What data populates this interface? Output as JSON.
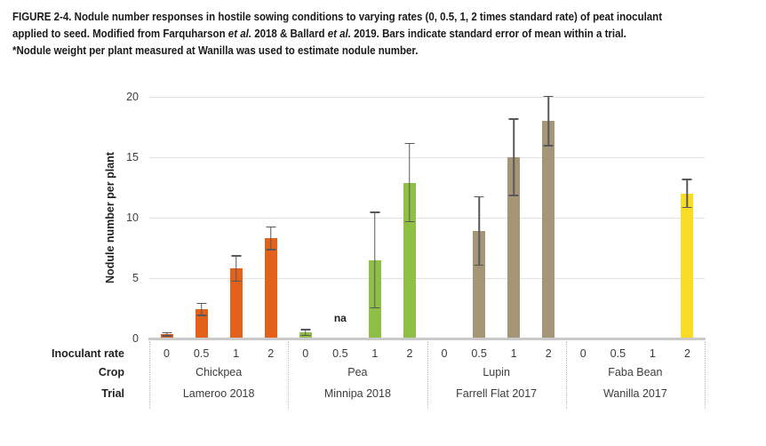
{
  "figure_caption": {
    "lines": [
      {
        "segments": [
          {
            "text": "FIGURE 2-4. Nodule number responses in hostile sowing conditions to varying rates (0, 0.5, 1, 2 times standard rate) of peat inoculant"
          }
        ]
      },
      {
        "segments": [
          {
            "text": "applied to seed. Modified from Farquharson "
          },
          {
            "text": "et al.",
            "italic": true
          },
          {
            "text": " 2018 & Ballard "
          },
          {
            "text": "et al.",
            "italic": true
          },
          {
            "text": " 2019. Bars indicate standard error of mean within a trial."
          }
        ]
      },
      {
        "segments": [
          {
            "text": "*Nodule weight per plant measured at Wanilla was used to estimate nodule number."
          }
        ]
      }
    ]
  },
  "chart_data": {
    "type": "bar",
    "ylabel": "Nodule number per plant",
    "xlabel": "",
    "ylim": [
      0,
      20
    ],
    "yticks": [
      0,
      5,
      10,
      15,
      20
    ],
    "grid": true,
    "legend": "none",
    "na_label": "na",
    "error_bar_color": "#58585a",
    "row_labels": {
      "rate": "Inoculant rate",
      "crop": "Crop",
      "trial": "Trial"
    },
    "rate_categories": [
      "0",
      "0.5",
      "1",
      "2"
    ],
    "groups": [
      {
        "crop": "Chickpea",
        "trial": "Lameroo 2018",
        "color": "#e2611b",
        "bars": [
          {
            "rate": "0",
            "value": 0.35,
            "error": 0.2
          },
          {
            "rate": "0.5",
            "value": 2.4,
            "error": 0.55
          },
          {
            "rate": "1",
            "value": 5.8,
            "error": 1.1
          },
          {
            "rate": "2",
            "value": 8.3,
            "error": 1.0
          }
        ]
      },
      {
        "crop": "Pea",
        "trial": "Minnipa 2018",
        "color": "#90bf46",
        "bars": [
          {
            "rate": "0",
            "value": 0.5,
            "error": 0.3
          },
          {
            "rate": "0.5",
            "value": null,
            "error": null,
            "note": "na"
          },
          {
            "rate": "1",
            "value": 6.5,
            "error": 4.0
          },
          {
            "rate": "2",
            "value": 12.9,
            "error": 3.3
          }
        ]
      },
      {
        "crop": "Lupin",
        "trial": "Farrell Flat 2017",
        "color": "#a69678",
        "bars": [
          {
            "rate": "0",
            "value": 0.1,
            "error": null
          },
          {
            "rate": "0.5",
            "value": 8.9,
            "error": 2.9
          },
          {
            "rate": "1",
            "value": 15.0,
            "error": 3.2
          },
          {
            "rate": "2",
            "value": 18.0,
            "error": 2.1
          }
        ]
      },
      {
        "crop": "Faba Bean",
        "trial": "Wanilla 2017",
        "color": "#fadc26",
        "bars": [
          {
            "rate": "0",
            "value": 0.1,
            "error": null,
            "bar_color": "#4d4d4d"
          },
          {
            "rate": "0.5",
            "value": 0.1,
            "error": null,
            "bar_color": "#4d4d4d"
          },
          {
            "rate": "1",
            "value": 0.1,
            "error": null,
            "bar_color": "#4d4d4d"
          },
          {
            "rate": "2",
            "value": 12.0,
            "error": 1.2
          }
        ]
      }
    ]
  }
}
